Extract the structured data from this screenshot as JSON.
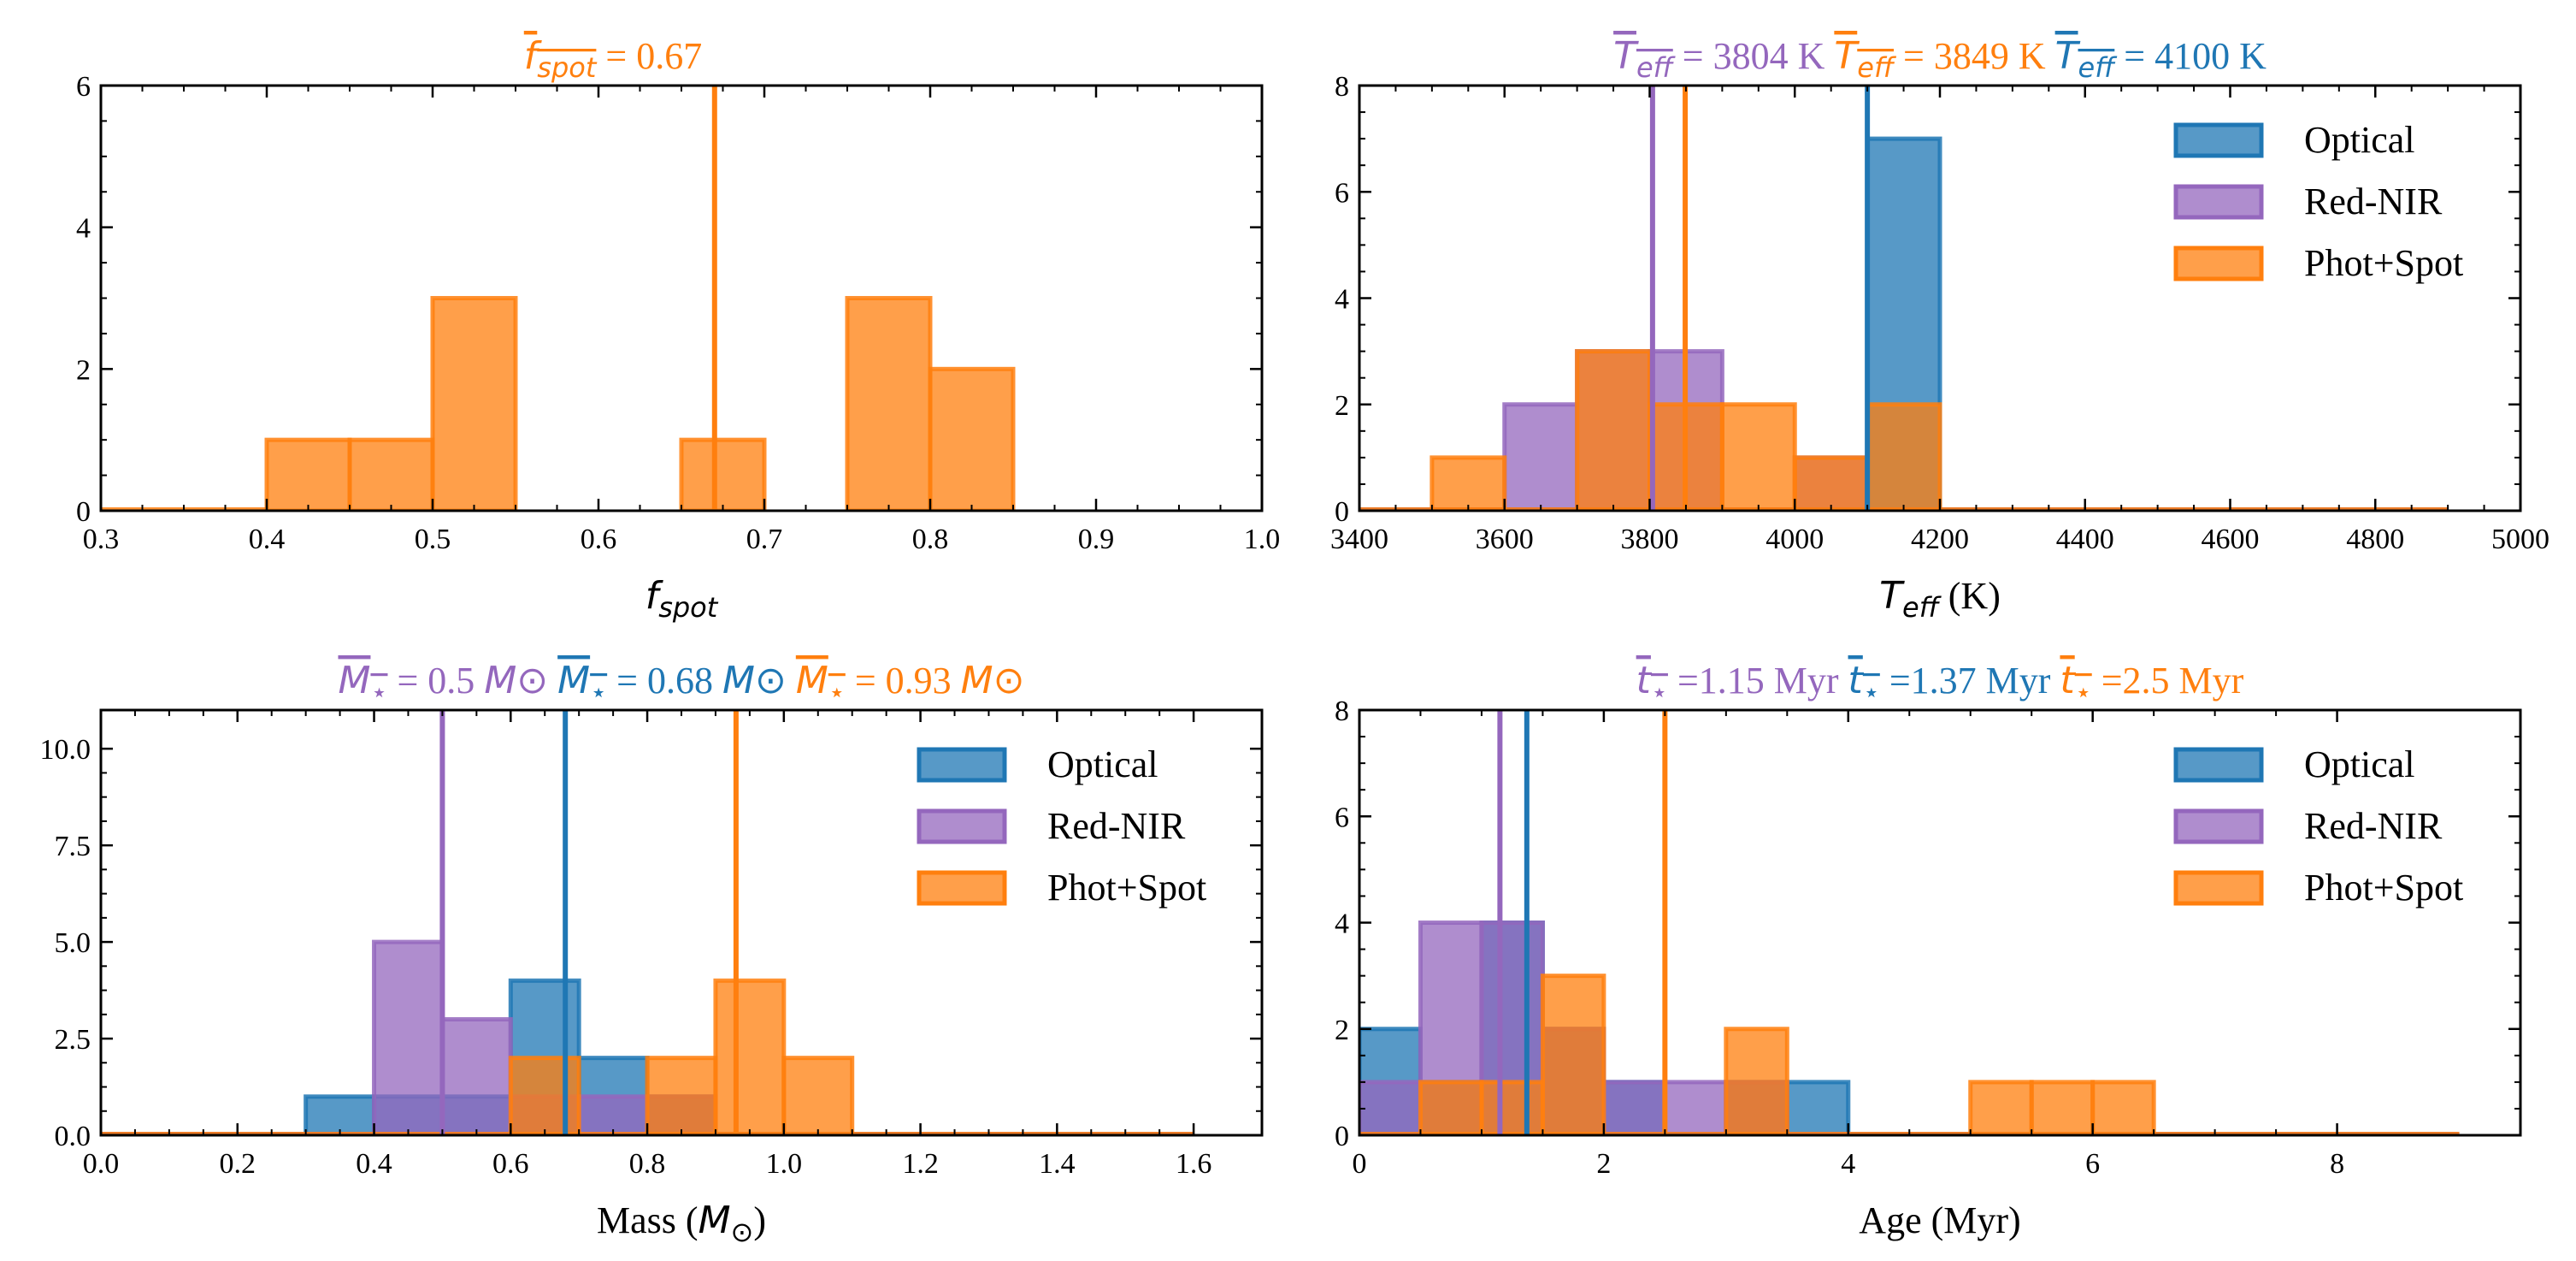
{
  "colors": {
    "optical": "#1f77b4",
    "rednir": "#9467bd",
    "photspot": "#ff7f0e"
  },
  "legend_labels": {
    "optical": "Optical",
    "rednir": "Red-NIR",
    "photspot": "Phot+Spot"
  },
  "chart_data": [
    {
      "id": "fspot",
      "type": "histogram",
      "xlabel": {
        "sym": "f",
        "sub": "spot",
        "unit": ""
      },
      "xlim": [
        0.3,
        1.0
      ],
      "ylim": [
        0,
        6
      ],
      "xticks": [
        0.3,
        0.4,
        0.5,
        0.6,
        0.7,
        0.8,
        0.9,
        1.0
      ],
      "xtick_labels": [
        "0.3",
        "0.4",
        "0.5",
        "0.6",
        "0.7",
        "0.8",
        "0.9",
        "1.0"
      ],
      "yticks": [
        0,
        2,
        4,
        6
      ],
      "ytick_labels": [
        "0",
        "2",
        "4",
        "6"
      ],
      "legend": false,
      "series": [
        {
          "key": "photspot",
          "name": "Phot+Spot",
          "baseline": [
            0.3,
            0.4
          ],
          "bins": [
            [
              0.4,
              0.45,
              1
            ],
            [
              0.45,
              0.5,
              1
            ],
            [
              0.5,
              0.55,
              3
            ],
            [
              0.65,
              0.7,
              1
            ],
            [
              0.75,
              0.8,
              3
            ],
            [
              0.8,
              0.85,
              2
            ]
          ]
        }
      ],
      "means": [
        {
          "key": "photspot",
          "sym": "f",
          "sub": "spot",
          "value": 0.67,
          "label": " = 0.67",
          "unit": ""
        }
      ]
    },
    {
      "id": "teff",
      "type": "histogram",
      "xlabel": {
        "sym": "T",
        "sub": "eff",
        "unit": " (K)"
      },
      "xlim": [
        3400,
        5000
      ],
      "ylim": [
        0,
        8
      ],
      "xticks": [
        3400,
        3600,
        3800,
        4000,
        4200,
        4400,
        4600,
        4800,
        5000
      ],
      "xtick_labels": [
        "3400",
        "3600",
        "3800",
        "4000",
        "4200",
        "4400",
        "4600",
        "4800",
        "5000"
      ],
      "yticks": [
        0,
        2,
        4,
        6,
        8
      ],
      "ytick_labels": [
        "0",
        "2",
        "4",
        "6",
        "8"
      ],
      "legend": true,
      "series": [
        {
          "key": "optical",
          "name": "Optical",
          "baseline": [
            3400,
            4900
          ],
          "bins": [
            [
              4100,
              4200,
              7
            ]
          ]
        },
        {
          "key": "rednir",
          "name": "Red-NIR",
          "baseline": [
            3400,
            4900
          ],
          "bins": [
            [
              3600,
              3700,
              2
            ],
            [
              3700,
              3800,
              3
            ],
            [
              3800,
              3900,
              3
            ],
            [
              4000,
              4100,
              1
            ]
          ]
        },
        {
          "key": "photspot",
          "name": "Phot+Spot",
          "baseline": [
            3400,
            4900
          ],
          "bins": [
            [
              3500,
              3600,
              1
            ],
            [
              3700,
              3800,
              3
            ],
            [
              3800,
              3900,
              2
            ],
            [
              3900,
              4000,
              2
            ],
            [
              4000,
              4100,
              1
            ],
            [
              4100,
              4200,
              2
            ]
          ]
        }
      ],
      "means": [
        {
          "key": "rednir",
          "sym": "T",
          "sub": "eff",
          "value": 3804,
          "label": " = 3804 K",
          "unit": ""
        },
        {
          "key": "photspot",
          "sym": "T",
          "sub": "eff",
          "value": 3849,
          "label": " = 3849 K",
          "unit": ""
        },
        {
          "key": "optical",
          "sym": "T",
          "sub": "eff",
          "value": 4100,
          "label": " = 4100 K",
          "unit": ""
        }
      ]
    },
    {
      "id": "mass",
      "type": "histogram",
      "xlabel": {
        "text": "Mass (",
        "sym": "M",
        "sub": "⊙",
        "unit": ")"
      },
      "xlim": [
        0.0,
        1.7
      ],
      "ylim": [
        0,
        11
      ],
      "xticks": [
        0.0,
        0.2,
        0.4,
        0.6,
        0.8,
        1.0,
        1.2,
        1.4,
        1.6
      ],
      "xtick_labels": [
        "0.0",
        "0.2",
        "0.4",
        "0.6",
        "0.8",
        "1.0",
        "1.2",
        "1.4",
        "1.6"
      ],
      "yticks": [
        0.0,
        2.5,
        5.0,
        7.5,
        10.0
      ],
      "ytick_labels": [
        "0.0",
        "2.5",
        "5.0",
        "7.5",
        "10.0"
      ],
      "legend": true,
      "series": [
        {
          "key": "optical",
          "name": "Optical",
          "baseline": [
            0.0,
            1.6
          ],
          "bins": [
            [
              0.3,
              0.4,
              1
            ],
            [
              0.4,
              0.5,
              1
            ],
            [
              0.5,
              0.6,
              1
            ],
            [
              0.6,
              0.7,
              4
            ],
            [
              0.7,
              0.8,
              2
            ],
            [
              0.8,
              0.9,
              1
            ]
          ]
        },
        {
          "key": "rednir",
          "name": "Red-NIR",
          "baseline": [
            0.0,
            1.6
          ],
          "bins": [
            [
              0.4,
              0.5,
              5
            ],
            [
              0.5,
              0.6,
              3
            ],
            [
              0.6,
              0.7,
              1
            ],
            [
              0.7,
              0.8,
              1
            ],
            [
              0.8,
              0.9,
              1
            ]
          ]
        },
        {
          "key": "photspot",
          "name": "Phot+Spot",
          "baseline": [
            0.0,
            1.6
          ],
          "bins": [
            [
              0.6,
              0.7,
              2
            ],
            [
              0.8,
              0.9,
              2
            ],
            [
              0.9,
              1.0,
              4
            ],
            [
              1.0,
              1.1,
              2
            ]
          ]
        }
      ],
      "means": [
        {
          "key": "rednir",
          "sym": "M",
          "sub": "⋆",
          "value": 0.5,
          "label": " = 0.5 ",
          "unit": "M⊙"
        },
        {
          "key": "optical",
          "sym": "M",
          "sub": "⋆",
          "value": 0.68,
          "label": " = 0.68 ",
          "unit": "M⊙"
        },
        {
          "key": "photspot",
          "sym": "M",
          "sub": "⋆",
          "value": 0.93,
          "label": " = 0.93 ",
          "unit": "M⊙"
        }
      ]
    },
    {
      "id": "age",
      "type": "histogram",
      "xlabel": {
        "text": "Age (Myr)"
      },
      "xlim": [
        0,
        9.5
      ],
      "ylim": [
        0,
        8
      ],
      "xticks": [
        0,
        2,
        4,
        6,
        8
      ],
      "xtick_labels": [
        "0",
        "2",
        "4",
        "6",
        "8"
      ],
      "yticks": [
        0,
        2,
        4,
        6,
        8
      ],
      "ytick_labels": [
        "0",
        "2",
        "4",
        "6",
        "8"
      ],
      "legend": true,
      "series": [
        {
          "key": "optical",
          "name": "Optical",
          "baseline": [
            0,
            9
          ],
          "bins": [
            [
              0,
              0.5,
              2
            ],
            [
              0.5,
              1.0,
              1
            ],
            [
              1.0,
              1.5,
              4
            ],
            [
              1.5,
              2.0,
              2
            ],
            [
              2.0,
              2.5,
              1
            ],
            [
              3.0,
              3.5,
              1
            ],
            [
              3.5,
              4.0,
              1
            ]
          ]
        },
        {
          "key": "rednir",
          "name": "Red-NIR",
          "baseline": [
            0,
            9
          ],
          "bins": [
            [
              0,
              0.5,
              1
            ],
            [
              0.5,
              1.0,
              4
            ],
            [
              1.0,
              1.5,
              4
            ],
            [
              1.5,
              2.0,
              2
            ],
            [
              2.0,
              2.5,
              1
            ],
            [
              2.5,
              3.0,
              1
            ],
            [
              3.0,
              3.5,
              1
            ]
          ]
        },
        {
          "key": "photspot",
          "name": "Phot+Spot",
          "baseline": [
            0,
            9
          ],
          "bins": [
            [
              0.5,
              1.0,
              1
            ],
            [
              1.0,
              1.5,
              1
            ],
            [
              1.5,
              2.0,
              3
            ],
            [
              3.0,
              3.5,
              2
            ],
            [
              5.0,
              5.5,
              1
            ],
            [
              5.5,
              6.0,
              1
            ],
            [
              6.0,
              6.5,
              1
            ]
          ]
        }
      ],
      "means": [
        {
          "key": "rednir",
          "sym": "t",
          "sub": "⋆",
          "value": 1.15,
          "label": " =1.15 Myr",
          "unit": ""
        },
        {
          "key": "optical",
          "sym": "t",
          "sub": "⋆",
          "value": 1.37,
          "label": " =1.37 Myr",
          "unit": ""
        },
        {
          "key": "photspot",
          "sym": "t",
          "sub": "⋆",
          "value": 2.5,
          "label": " =2.5 Myr",
          "unit": ""
        }
      ]
    }
  ]
}
